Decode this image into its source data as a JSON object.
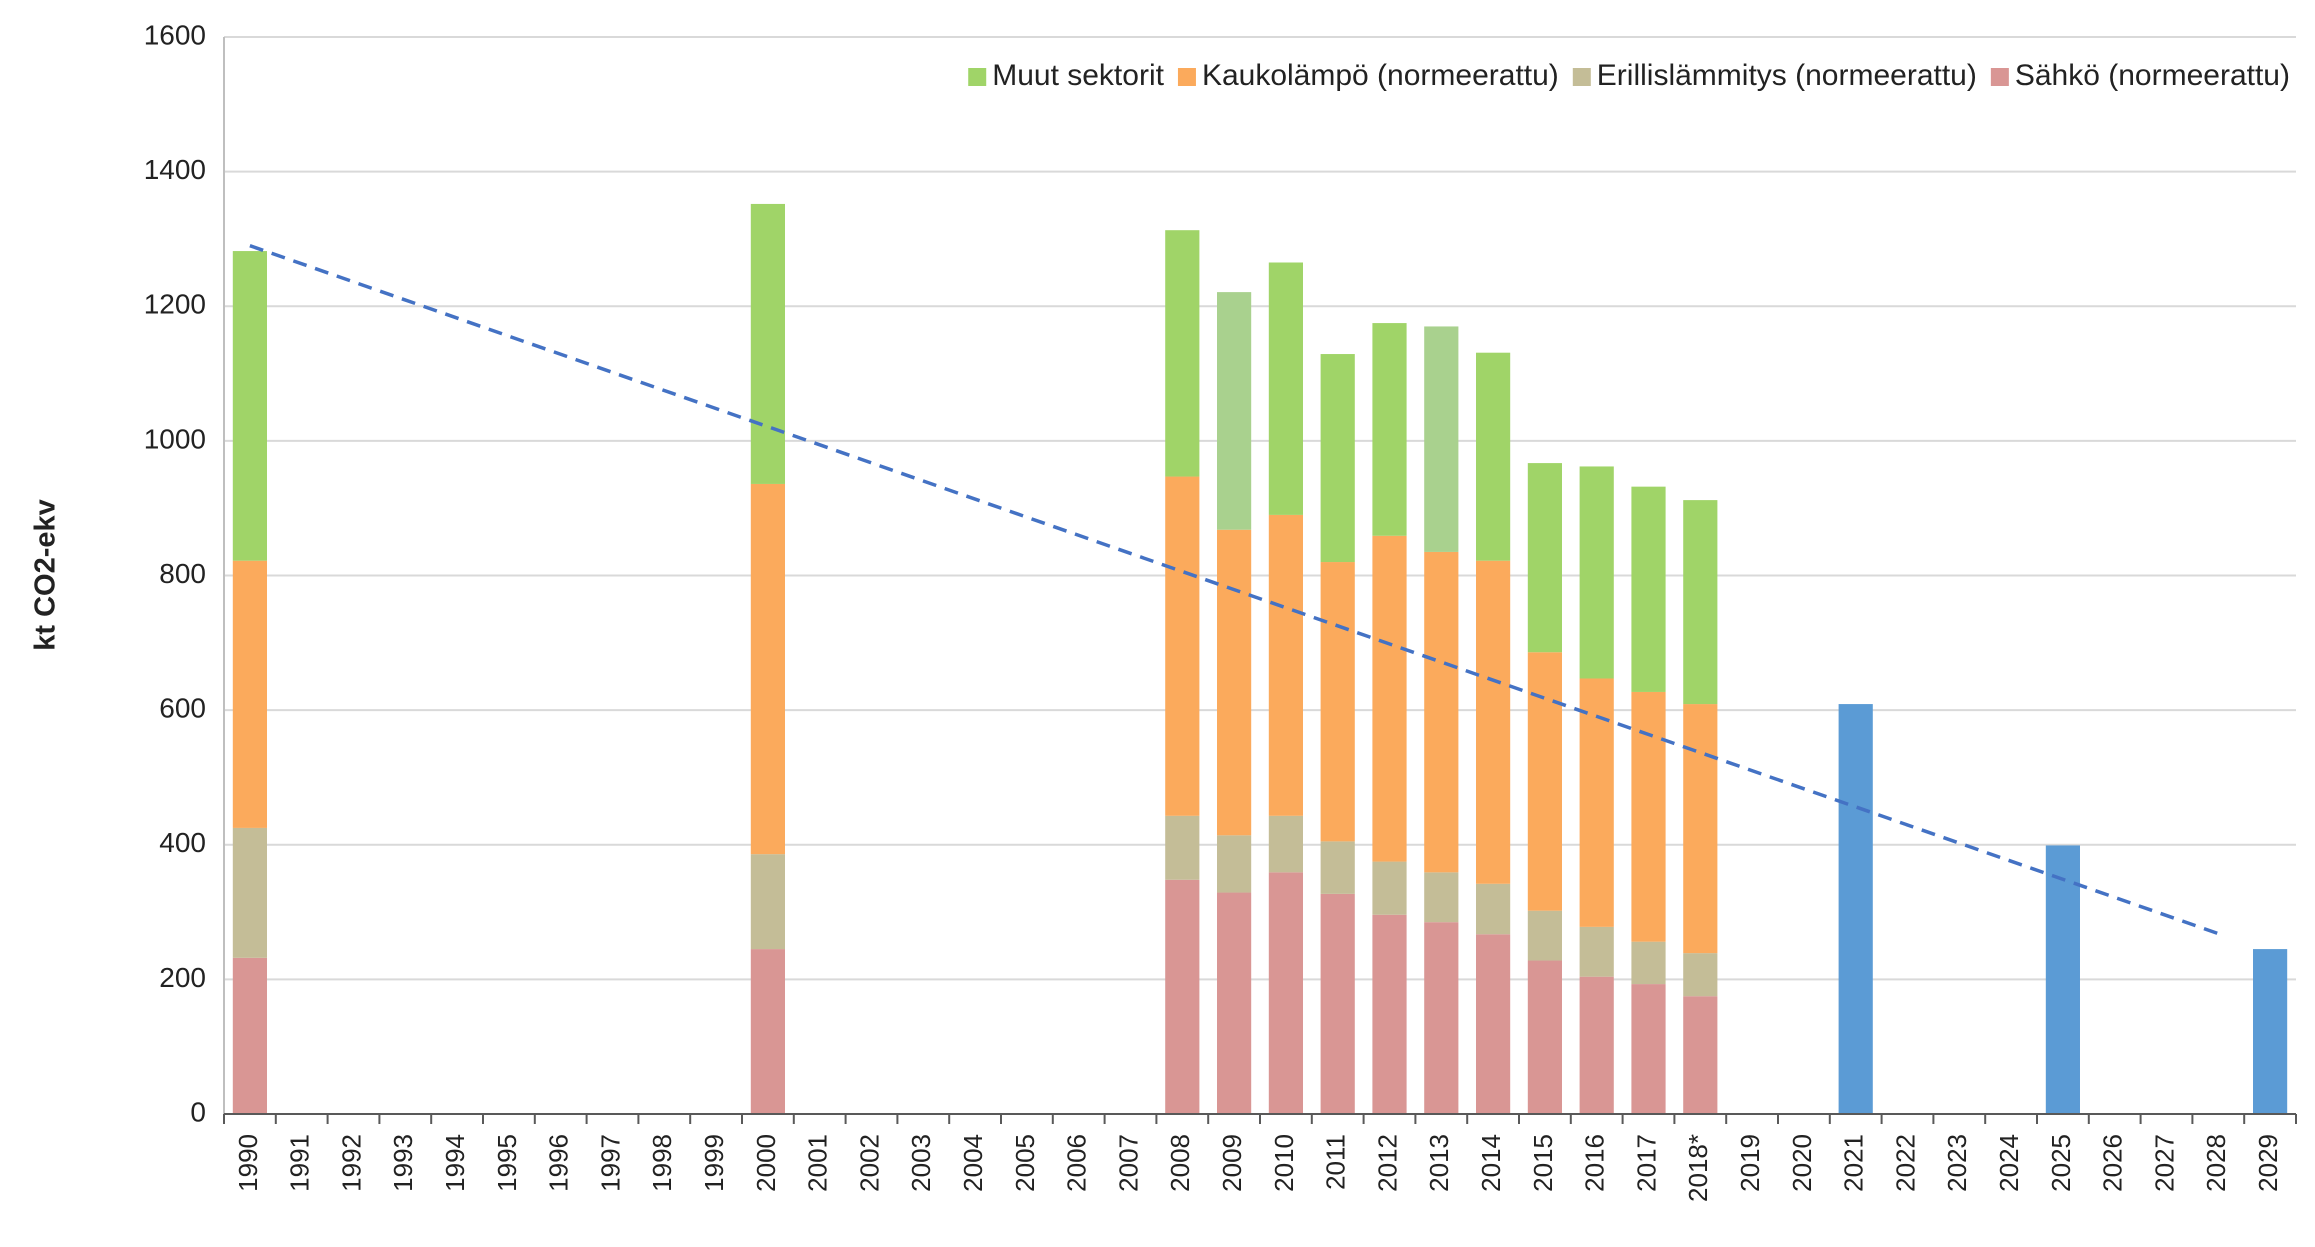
{
  "chart_data": {
    "type": "bar",
    "stacked": true,
    "ylabel": "kt CO2-ekv",
    "categories": [
      "1990",
      "1991",
      "1992",
      "1993",
      "1994",
      "1995",
      "1996",
      "1997",
      "1998",
      "1999",
      "2000",
      "2001",
      "2002",
      "2003",
      "2004",
      "2005",
      "2006",
      "2007",
      "2008",
      "2009",
      "2010",
      "2011",
      "2012",
      "2013",
      "2014",
      "2015",
      "2016",
      "2017",
      "2018*",
      "2019",
      "2020",
      "2021",
      "2022",
      "2023",
      "2024",
      "2025",
      "2026",
      "2027",
      "2028",
      "2029"
    ],
    "series": [
      {
        "name": "Sähkö (normeerattu)",
        "color": "#d99694",
        "values": [
          232,
          null,
          null,
          null,
          null,
          null,
          null,
          null,
          null,
          null,
          245,
          null,
          null,
          null,
          null,
          null,
          null,
          null,
          348,
          329,
          359,
          327,
          296,
          285,
          267,
          228,
          204,
          193,
          175,
          null,
          null,
          null,
          null,
          null,
          null,
          null,
          null,
          null,
          null,
          null
        ]
      },
      {
        "name": "Erillislämmitys (normeerattu)",
        "color": "#c4bd97",
        "values": [
          193,
          null,
          null,
          null,
          null,
          null,
          null,
          null,
          null,
          null,
          141,
          null,
          null,
          null,
          null,
          null,
          null,
          null,
          95,
          85,
          84,
          78,
          79,
          74,
          75,
          74,
          74,
          63,
          64,
          null,
          null,
          null,
          null,
          null,
          null,
          null,
          null,
          null,
          null,
          null
        ]
      },
      {
        "name": "Kaukolämpö (normeerattu)",
        "color": "#fbaa5c",
        "values": [
          397,
          null,
          null,
          null,
          null,
          null,
          null,
          null,
          null,
          null,
          550,
          null,
          null,
          null,
          null,
          null,
          null,
          null,
          504,
          454,
          447,
          415,
          484,
          476,
          480,
          384,
          369,
          371,
          370,
          null,
          null,
          null,
          null,
          null,
          null,
          null,
          null,
          null,
          null,
          null
        ]
      },
      {
        "name": "Muut sektorit",
        "color": "#a0d468",
        "colors": [
          null,
          null,
          null,
          null,
          null,
          null,
          null,
          null,
          null,
          null,
          null,
          null,
          null,
          null,
          null,
          null,
          null,
          null,
          null,
          "#a9d18e",
          null,
          null,
          null,
          "#a9d18e",
          null,
          null,
          null,
          null,
          null,
          null,
          null,
          null,
          null,
          null,
          null,
          null,
          null,
          null,
          null,
          null
        ],
        "values": [
          460,
          null,
          null,
          null,
          null,
          null,
          null,
          null,
          null,
          null,
          416,
          null,
          null,
          null,
          null,
          null,
          null,
          null,
          366,
          353,
          375,
          309,
          316,
          335,
          309,
          281,
          315,
          305,
          303,
          null,
          null,
          null,
          null,
          null,
          null,
          null,
          null,
          null,
          null,
          null
        ]
      },
      {
        "color": "#5b9bd5",
        "values": [
          null,
          null,
          null,
          null,
          null,
          null,
          null,
          null,
          null,
          null,
          null,
          null,
          null,
          null,
          null,
          null,
          null,
          null,
          null,
          null,
          null,
          null,
          null,
          null,
          null,
          null,
          null,
          null,
          null,
          null,
          null,
          609,
          null,
          null,
          null,
          399,
          null,
          null,
          null,
          245
        ]
      }
    ],
    "trend": {
      "color": "#4472c4",
      "x": [
        "1990",
        "2028"
      ],
      "values": [
        1290,
        268
      ]
    },
    "ylim": [
      0,
      1600
    ],
    "yticks": [
      0,
      200,
      400,
      600,
      800,
      1000,
      1200,
      1400,
      1600
    ],
    "grid": true,
    "legend": "top-right"
  }
}
